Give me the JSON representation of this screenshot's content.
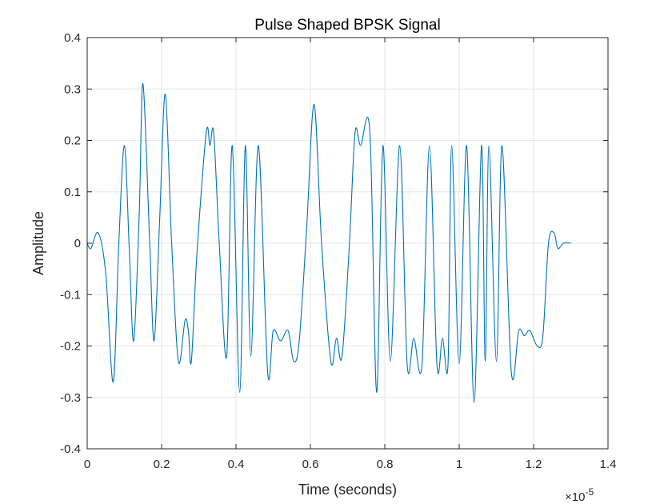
{
  "chart_data": {
    "type": "line",
    "title": "Pulse Shaped BPSK Signal",
    "xlabel": "Time (seconds)",
    "ylabel": "Amplitude",
    "xlim": [
      0,
      1.4
    ],
    "ylim": [
      -0.4,
      0.4
    ],
    "x_exponent_label": "×10",
    "x_exponent_power": "-5",
    "x_ticks": [
      0,
      0.2,
      0.4,
      0.6,
      0.8,
      1,
      1.2,
      1.4
    ],
    "x_tick_labels": [
      "0",
      "0.2",
      "0.4",
      "0.6",
      "0.8",
      "1",
      "1.2",
      "1.4"
    ],
    "y_ticks": [
      -0.4,
      -0.3,
      -0.2,
      -0.1,
      0,
      0.1,
      0.2,
      0.3,
      0.4
    ],
    "y_tick_labels": [
      "-0.4",
      "-0.3",
      "-0.2",
      "-0.1",
      "0",
      "0.1",
      "0.2",
      "0.3",
      "0.4"
    ],
    "grid": true,
    "series": [
      {
        "color": "#0072bd",
        "x": [
          0,
          0.01,
          0.03,
          0.05,
          0.07,
          0.085,
          0.1,
          0.113,
          0.125,
          0.14,
          0.15,
          0.168,
          0.18,
          0.195,
          0.21,
          0.227,
          0.245,
          0.263,
          0.272,
          0.28,
          0.295,
          0.32,
          0.33,
          0.34,
          0.355,
          0.375,
          0.39,
          0.41,
          0.425,
          0.44,
          0.46,
          0.485,
          0.5,
          0.52,
          0.54,
          0.555,
          0.57,
          0.59,
          0.61,
          0.63,
          0.655,
          0.67,
          0.685,
          0.705,
          0.72,
          0.735,
          0.76,
          0.778,
          0.795,
          0.815,
          0.84,
          0.86,
          0.878,
          0.9,
          0.92,
          0.94,
          0.955,
          0.97,
          0.98,
          1.0,
          1.02,
          1.04,
          1.06,
          1.07,
          1.08,
          1.1,
          1.115,
          1.14,
          1.16,
          1.175,
          1.19,
          1.21,
          1.225,
          1.24,
          1.255,
          1.265,
          1.28,
          1.3
        ],
        "y": [
          0,
          -0.01,
          0.02,
          -0.06,
          -0.27,
          0.0,
          0.19,
          -0.01,
          -0.19,
          0.06,
          0.31,
          0.0,
          -0.19,
          0.05,
          0.29,
          0.0,
          -0.23,
          -0.15,
          -0.17,
          -0.23,
          -0.02,
          0.215,
          0.19,
          0.215,
          0.0,
          -0.22,
          0.19,
          -0.29,
          0.19,
          -0.22,
          0.19,
          -0.25,
          -0.17,
          -0.19,
          -0.17,
          -0.23,
          -0.19,
          0.03,
          0.27,
          0.0,
          -0.23,
          -0.185,
          -0.22,
          0.0,
          0.215,
          0.19,
          0.215,
          -0.29,
          0.19,
          -0.23,
          0.19,
          -0.235,
          -0.185,
          -0.235,
          0.19,
          -0.235,
          -0.185,
          -0.235,
          0.19,
          -0.235,
          0.19,
          -0.31,
          0.19,
          -0.23,
          0.19,
          -0.23,
          0.19,
          -0.25,
          -0.17,
          -0.18,
          -0.17,
          -0.2,
          -0.18,
          0.0,
          0.02,
          -0.01,
          0.0,
          0.0
        ]
      }
    ]
  }
}
